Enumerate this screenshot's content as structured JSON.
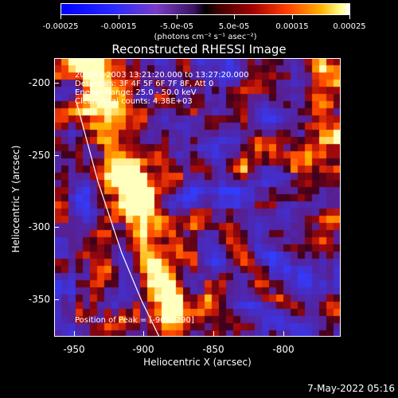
{
  "colorbar": {
    "ticks": [
      "-0.00025",
      "-0.00015",
      "-5.0e-05",
      "5.0e-05",
      "0.00015",
      "0.00025"
    ],
    "unit": "(photons cm⁻² s⁻¹ asec⁻²)"
  },
  "title": "Reconstructed RHESSI Image",
  "info": {
    "time_range": "20-Nov-2003 13:21:20.000 to 13:27:20.000",
    "detectors": "Detectors: 3F 4F 5F 6F 7F 8F, Att 0",
    "energy": "Energy Range: 25.0 - 50.0 keV",
    "method": "Clean     Total counts: 4.38E+03",
    "peak": "Position of Peak = [-901,-290]"
  },
  "axes": {
    "xlabel": "Heliocentric X (arcsec)",
    "ylabel": "Heliocentric Y (arcsec)",
    "xticks": [
      "-950",
      "-900",
      "-850",
      "-800"
    ],
    "yticks": [
      "-200",
      "-250",
      "-300",
      "-350"
    ],
    "xrange": [
      -967,
      -762
    ],
    "yrange": [
      -378,
      -182
    ]
  },
  "footer_date": "7-May-2022 05:16"
}
